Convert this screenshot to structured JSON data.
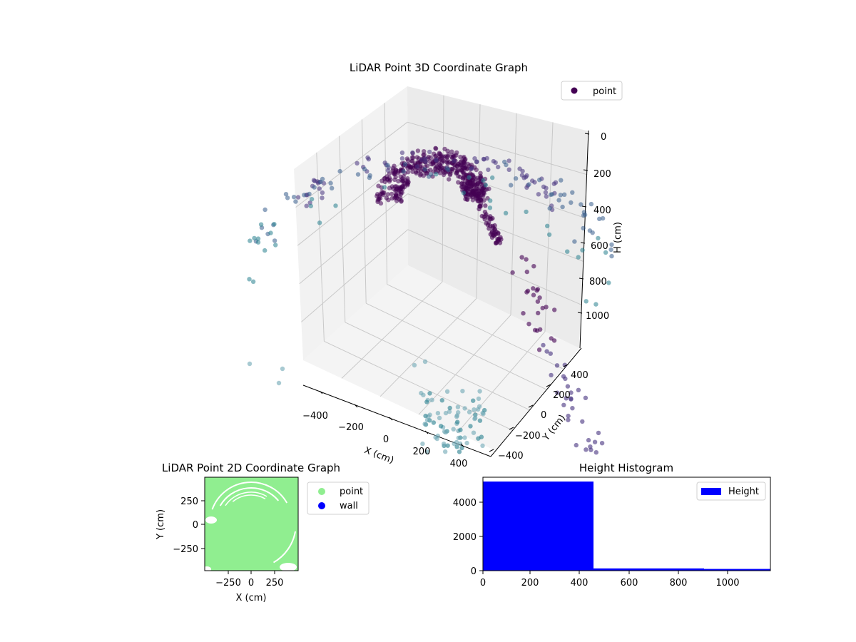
{
  "chart_data": [
    {
      "type": "scatter",
      "projection": "3d",
      "title": "LiDAR Point 3D Coordinate Graph",
      "xlabel": "X (cm)",
      "ylabel": "Y (cm)",
      "zlabel": "H (cm)",
      "x_ticks": [
        "−400",
        "−200",
        "0",
        "200",
        "400"
      ],
      "y_ticks": [
        "−400",
        "−200",
        "0",
        "200",
        "400"
      ],
      "z_ticks": [
        "0",
        "200",
        "400",
        "600",
        "800",
        "1000"
      ],
      "xlim": [
        -500,
        500
      ],
      "ylim": [
        -500,
        500
      ],
      "zlim": [
        1150,
        0
      ],
      "z_inverted": true,
      "grid": true,
      "legend": {
        "placement": "top-right",
        "entries": [
          "point"
        ]
      },
      "series": [
        {
          "name": "point",
          "color": "#440154",
          "description_points": "dense dome of ~5000 returns near H 0–450, sparse outer ring near H 600–1100"
        }
      ],
      "colormap": [
        "#440154",
        "#46327e",
        "#365c8d",
        "#277f8e",
        "#6ea6b4"
      ]
    },
    {
      "type": "scatter",
      "title": "LiDAR Point 2D Coordinate Graph",
      "xlabel": "X (cm)",
      "ylabel": "Y (cm)",
      "x_ticks": [
        "−250",
        "0",
        "250"
      ],
      "y_ticks": [
        "250",
        "0",
        "−250"
      ],
      "xlim": [
        -500,
        500
      ],
      "ylim": [
        -500,
        500
      ],
      "legend": {
        "placement": "right-outside",
        "entries": [
          "point",
          "wall"
        ]
      },
      "series": [
        {
          "name": "point",
          "color": "#90ee90"
        },
        {
          "name": "wall",
          "color": "#0000ff"
        }
      ]
    },
    {
      "type": "bar",
      "title": "Height Histogram",
      "x_ticks": [
        "0",
        "200",
        "400",
        "600",
        "800",
        "1000"
      ],
      "y_ticks": [
        "0",
        "2000",
        "4000"
      ],
      "xlim": [
        0,
        1170
      ],
      "ylim": [
        0,
        5400
      ],
      "bins": [
        [
          0,
          450
        ],
        [
          450,
          900
        ],
        [
          900,
          1170
        ]
      ],
      "values": [
        5150,
        130,
        100
      ],
      "legend": {
        "placement": "top-right",
        "entries": [
          "Height"
        ]
      },
      "series": [
        {
          "name": "Height",
          "color": "#0000ff"
        }
      ]
    }
  ]
}
